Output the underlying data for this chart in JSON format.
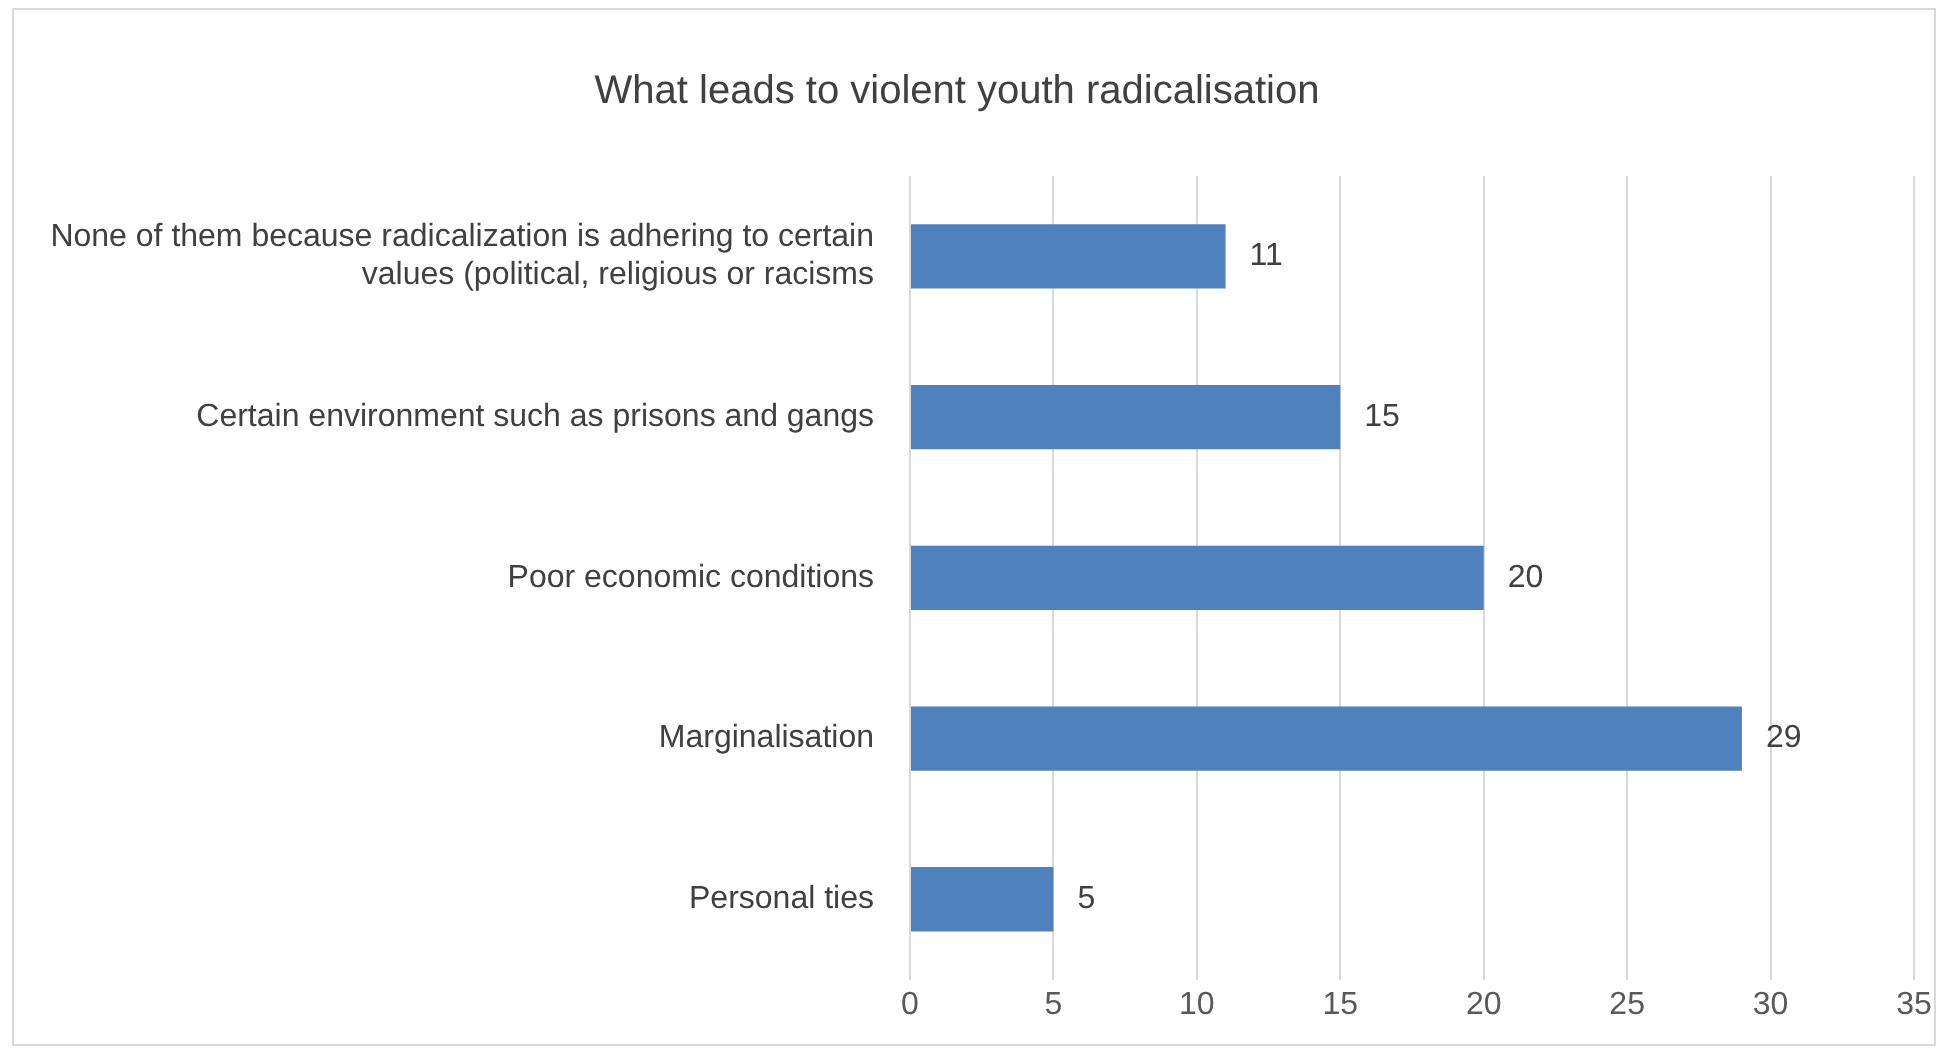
{
  "chart_data": {
    "type": "bar",
    "orientation": "horizontal",
    "title": "What leads to violent youth radicalisation",
    "categories": [
      "None of them because radicalization is adhering to certain values (political, religious or racisms",
      "Certain environment such as prisons and gangs",
      "Poor economic conditions",
      "Marginalisation",
      "Personal ties"
    ],
    "values": [
      11,
      15,
      20,
      29,
      5
    ],
    "color": "#4f81bd",
    "xlim": [
      0,
      35
    ],
    "xticks": [
      0,
      5,
      10,
      15,
      20,
      25,
      30,
      35
    ],
    "grid": "x",
    "data_labels": true,
    "legend": false
  }
}
